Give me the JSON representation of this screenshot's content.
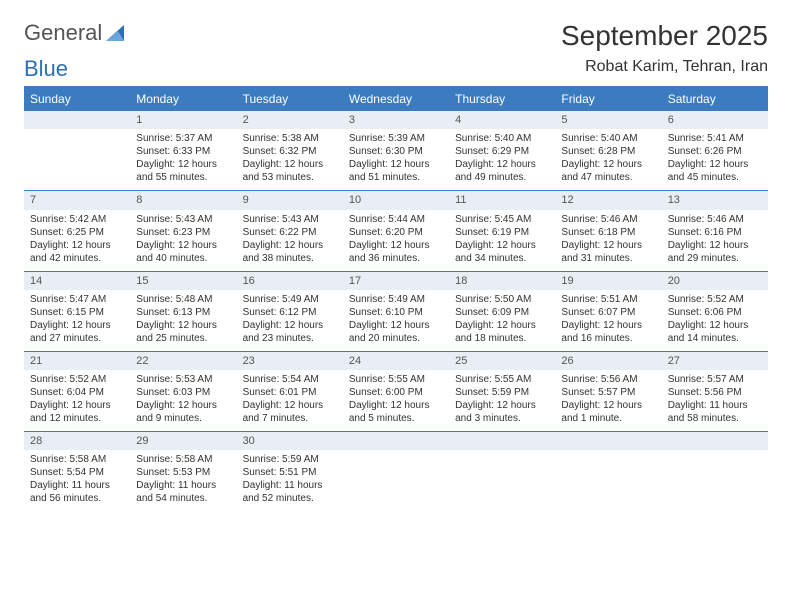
{
  "logo": {
    "text1": "General",
    "text2": "Blue"
  },
  "title": "September 2025",
  "subtitle": "Robat Karim, Tehran, Iran",
  "colors": {
    "header_bg": "#3b7bbf",
    "header_fg": "#ffffff",
    "daybar_bg": "#e8eef4",
    "rule": "#3b7bbf",
    "text": "#333333",
    "logo_blue": "#2e6fb3"
  },
  "weekdays": [
    "Sunday",
    "Monday",
    "Tuesday",
    "Wednesday",
    "Thursday",
    "Friday",
    "Saturday"
  ],
  "weeks": [
    [
      {
        "n": "",
        "sr": "",
        "ss": "",
        "dl": ""
      },
      {
        "n": "1",
        "sr": "Sunrise: 5:37 AM",
        "ss": "Sunset: 6:33 PM",
        "dl": "Daylight: 12 hours and 55 minutes."
      },
      {
        "n": "2",
        "sr": "Sunrise: 5:38 AM",
        "ss": "Sunset: 6:32 PM",
        "dl": "Daylight: 12 hours and 53 minutes."
      },
      {
        "n": "3",
        "sr": "Sunrise: 5:39 AM",
        "ss": "Sunset: 6:30 PM",
        "dl": "Daylight: 12 hours and 51 minutes."
      },
      {
        "n": "4",
        "sr": "Sunrise: 5:40 AM",
        "ss": "Sunset: 6:29 PM",
        "dl": "Daylight: 12 hours and 49 minutes."
      },
      {
        "n": "5",
        "sr": "Sunrise: 5:40 AM",
        "ss": "Sunset: 6:28 PM",
        "dl": "Daylight: 12 hours and 47 minutes."
      },
      {
        "n": "6",
        "sr": "Sunrise: 5:41 AM",
        "ss": "Sunset: 6:26 PM",
        "dl": "Daylight: 12 hours and 45 minutes."
      }
    ],
    [
      {
        "n": "7",
        "sr": "Sunrise: 5:42 AM",
        "ss": "Sunset: 6:25 PM",
        "dl": "Daylight: 12 hours and 42 minutes."
      },
      {
        "n": "8",
        "sr": "Sunrise: 5:43 AM",
        "ss": "Sunset: 6:23 PM",
        "dl": "Daylight: 12 hours and 40 minutes."
      },
      {
        "n": "9",
        "sr": "Sunrise: 5:43 AM",
        "ss": "Sunset: 6:22 PM",
        "dl": "Daylight: 12 hours and 38 minutes."
      },
      {
        "n": "10",
        "sr": "Sunrise: 5:44 AM",
        "ss": "Sunset: 6:20 PM",
        "dl": "Daylight: 12 hours and 36 minutes."
      },
      {
        "n": "11",
        "sr": "Sunrise: 5:45 AM",
        "ss": "Sunset: 6:19 PM",
        "dl": "Daylight: 12 hours and 34 minutes."
      },
      {
        "n": "12",
        "sr": "Sunrise: 5:46 AM",
        "ss": "Sunset: 6:18 PM",
        "dl": "Daylight: 12 hours and 31 minutes."
      },
      {
        "n": "13",
        "sr": "Sunrise: 5:46 AM",
        "ss": "Sunset: 6:16 PM",
        "dl": "Daylight: 12 hours and 29 minutes."
      }
    ],
    [
      {
        "n": "14",
        "sr": "Sunrise: 5:47 AM",
        "ss": "Sunset: 6:15 PM",
        "dl": "Daylight: 12 hours and 27 minutes."
      },
      {
        "n": "15",
        "sr": "Sunrise: 5:48 AM",
        "ss": "Sunset: 6:13 PM",
        "dl": "Daylight: 12 hours and 25 minutes."
      },
      {
        "n": "16",
        "sr": "Sunrise: 5:49 AM",
        "ss": "Sunset: 6:12 PM",
        "dl": "Daylight: 12 hours and 23 minutes."
      },
      {
        "n": "17",
        "sr": "Sunrise: 5:49 AM",
        "ss": "Sunset: 6:10 PM",
        "dl": "Daylight: 12 hours and 20 minutes."
      },
      {
        "n": "18",
        "sr": "Sunrise: 5:50 AM",
        "ss": "Sunset: 6:09 PM",
        "dl": "Daylight: 12 hours and 18 minutes."
      },
      {
        "n": "19",
        "sr": "Sunrise: 5:51 AM",
        "ss": "Sunset: 6:07 PM",
        "dl": "Daylight: 12 hours and 16 minutes."
      },
      {
        "n": "20",
        "sr": "Sunrise: 5:52 AM",
        "ss": "Sunset: 6:06 PM",
        "dl": "Daylight: 12 hours and 14 minutes."
      }
    ],
    [
      {
        "n": "21",
        "sr": "Sunrise: 5:52 AM",
        "ss": "Sunset: 6:04 PM",
        "dl": "Daylight: 12 hours and 12 minutes."
      },
      {
        "n": "22",
        "sr": "Sunrise: 5:53 AM",
        "ss": "Sunset: 6:03 PM",
        "dl": "Daylight: 12 hours and 9 minutes."
      },
      {
        "n": "23",
        "sr": "Sunrise: 5:54 AM",
        "ss": "Sunset: 6:01 PM",
        "dl": "Daylight: 12 hours and 7 minutes."
      },
      {
        "n": "24",
        "sr": "Sunrise: 5:55 AM",
        "ss": "Sunset: 6:00 PM",
        "dl": "Daylight: 12 hours and 5 minutes."
      },
      {
        "n": "25",
        "sr": "Sunrise: 5:55 AM",
        "ss": "Sunset: 5:59 PM",
        "dl": "Daylight: 12 hours and 3 minutes."
      },
      {
        "n": "26",
        "sr": "Sunrise: 5:56 AM",
        "ss": "Sunset: 5:57 PM",
        "dl": "Daylight: 12 hours and 1 minute."
      },
      {
        "n": "27",
        "sr": "Sunrise: 5:57 AM",
        "ss": "Sunset: 5:56 PM",
        "dl": "Daylight: 11 hours and 58 minutes."
      }
    ],
    [
      {
        "n": "28",
        "sr": "Sunrise: 5:58 AM",
        "ss": "Sunset: 5:54 PM",
        "dl": "Daylight: 11 hours and 56 minutes."
      },
      {
        "n": "29",
        "sr": "Sunrise: 5:58 AM",
        "ss": "Sunset: 5:53 PM",
        "dl": "Daylight: 11 hours and 54 minutes."
      },
      {
        "n": "30",
        "sr": "Sunrise: 5:59 AM",
        "ss": "Sunset: 5:51 PM",
        "dl": "Daylight: 11 hours and 52 minutes."
      },
      {
        "n": "",
        "sr": "",
        "ss": "",
        "dl": ""
      },
      {
        "n": "",
        "sr": "",
        "ss": "",
        "dl": ""
      },
      {
        "n": "",
        "sr": "",
        "ss": "",
        "dl": ""
      },
      {
        "n": "",
        "sr": "",
        "ss": "",
        "dl": ""
      }
    ]
  ]
}
